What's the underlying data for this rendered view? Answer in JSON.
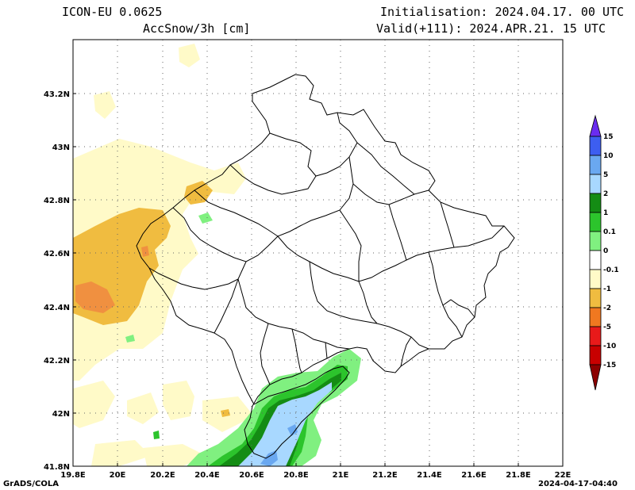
{
  "header": {
    "model": "ICON-EU 0.0625",
    "variable": "AccSnow/3h [cm]",
    "init": "Initialisation: 2024.04.17. 00 UTC",
    "valid": "Valid(+111): 2024.APR.21. 15 UTC"
  },
  "footer": {
    "credit": "GrADS/COLA",
    "timestamp": "2024-04-17-04:40"
  },
  "axes": {
    "x_ticks": [
      "19.8E",
      "20E",
      "20.2E",
      "20.4E",
      "20.6E",
      "20.8E",
      "21E",
      "21.2E",
      "21.4E",
      "21.6E",
      "21.8E",
      "22E"
    ],
    "y_ticks": [
      "43.2N",
      "43N",
      "42.8N",
      "42.6N",
      "42.4N",
      "42.2N",
      "42N",
      "41.8N"
    ]
  },
  "colorbar": {
    "labels": [
      "15",
      "10",
      "5",
      "2",
      "1",
      "0.1",
      "0",
      "-0.1",
      "-1",
      "-2",
      "-5",
      "-10",
      "-15"
    ],
    "colors": [
      "#6a2cf0",
      "#3d5ef0",
      "#6aa8f0",
      "#a8d8ff",
      "#148c14",
      "#2cc42c",
      "#80f080",
      "#ffffff",
      "#fffac8",
      "#f0bc40",
      "#f07820",
      "#e81a1a",
      "#c80000",
      "#8c0000"
    ]
  },
  "map_colors": {
    "cream": "#fffac8",
    "orange": "#f0bc40",
    "dark_orange": "#f09040",
    "light_green": "#80f080",
    "green": "#2cc42c",
    "dark_green": "#148c14",
    "light_blue": "#a8d8ff",
    "blue": "#6aa8f0"
  }
}
